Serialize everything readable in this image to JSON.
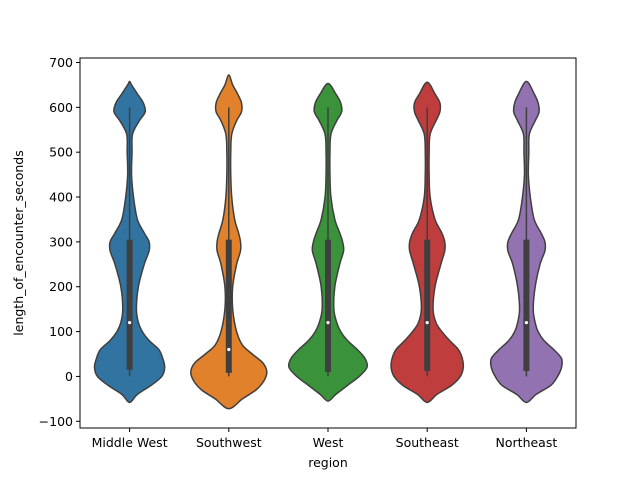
{
  "chart_data": {
    "type": "violin",
    "xlabel": "region",
    "ylabel": "length_of_encounter_seconds",
    "categories": [
      "Middle West",
      "Southwest",
      "West",
      "Southeast",
      "Northeast"
    ],
    "colors": [
      "#3274a1",
      "#e1812c",
      "#3a923a",
      "#c03d3e",
      "#9372b2"
    ],
    "ylim": [
      -115,
      710
    ],
    "yticks": [
      -100,
      0,
      100,
      200,
      300,
      400,
      500,
      600,
      700
    ],
    "grid": false,
    "violins": [
      {
        "name": "Middle West",
        "min": -58,
        "max": 658,
        "box": {
          "whisker_low": 0,
          "q1": 15,
          "median": 120,
          "q3": 305,
          "whisker_high": 600
        },
        "density": [
          [
            -58,
            0
          ],
          [
            -40,
            8
          ],
          [
            -20,
            22
          ],
          [
            0,
            33
          ],
          [
            20,
            36
          ],
          [
            40,
            34
          ],
          [
            60,
            30
          ],
          [
            80,
            20
          ],
          [
            100,
            13
          ],
          [
            120,
            9
          ],
          [
            150,
            7
          ],
          [
            200,
            9
          ],
          [
            250,
            15
          ],
          [
            280,
            20
          ],
          [
            300,
            20
          ],
          [
            320,
            15
          ],
          [
            350,
            8
          ],
          [
            400,
            4
          ],
          [
            450,
            2
          ],
          [
            500,
            2.5
          ],
          [
            540,
            3
          ],
          [
            570,
            10
          ],
          [
            590,
            16
          ],
          [
            610,
            14
          ],
          [
            630,
            8
          ],
          [
            650,
            2
          ],
          [
            658,
            0
          ]
        ]
      },
      {
        "name": "Southwest",
        "min": -72,
        "max": 672,
        "box": {
          "whisker_low": 0,
          "q1": 8,
          "median": 60,
          "q3": 305,
          "whisker_high": 600
        },
        "density": [
          [
            -72,
            0
          ],
          [
            -50,
            14
          ],
          [
            -30,
            28
          ],
          [
            -10,
            36
          ],
          [
            10,
            39
          ],
          [
            30,
            35
          ],
          [
            50,
            24
          ],
          [
            70,
            14
          ],
          [
            100,
            8
          ],
          [
            150,
            4
          ],
          [
            200,
            4
          ],
          [
            250,
            8
          ],
          [
            280,
            12
          ],
          [
            300,
            12
          ],
          [
            320,
            10
          ],
          [
            350,
            6
          ],
          [
            400,
            3
          ],
          [
            450,
            2
          ],
          [
            500,
            2
          ],
          [
            540,
            3
          ],
          [
            570,
            8
          ],
          [
            590,
            13
          ],
          [
            610,
            13
          ],
          [
            630,
            9
          ],
          [
            650,
            4
          ],
          [
            672,
            0
          ]
        ]
      },
      {
        "name": "West",
        "min": -55,
        "max": 653,
        "box": {
          "whisker_low": 0,
          "q1": 10,
          "median": 120,
          "q3": 305,
          "whisker_high": 600
        },
        "density": [
          [
            -55,
            0
          ],
          [
            -40,
            8
          ],
          [
            -20,
            20
          ],
          [
            0,
            32
          ],
          [
            20,
            40
          ],
          [
            40,
            38
          ],
          [
            60,
            30
          ],
          [
            80,
            20
          ],
          [
            100,
            13
          ],
          [
            120,
            9
          ],
          [
            150,
            6
          ],
          [
            200,
            7
          ],
          [
            250,
            12
          ],
          [
            280,
            16
          ],
          [
            300,
            15
          ],
          [
            320,
            12
          ],
          [
            350,
            7
          ],
          [
            400,
            3
          ],
          [
            450,
            2
          ],
          [
            500,
            2
          ],
          [
            540,
            3
          ],
          [
            570,
            9
          ],
          [
            590,
            14
          ],
          [
            610,
            13
          ],
          [
            630,
            8
          ],
          [
            653,
            0
          ]
        ]
      },
      {
        "name": "Southeast",
        "min": -58,
        "max": 656,
        "box": {
          "whisker_low": 0,
          "q1": 12,
          "median": 120,
          "q3": 305,
          "whisker_high": 600
        },
        "density": [
          [
            -58,
            0
          ],
          [
            -40,
            10
          ],
          [
            -20,
            25
          ],
          [
            0,
            34
          ],
          [
            20,
            37
          ],
          [
            40,
            36
          ],
          [
            60,
            32
          ],
          [
            80,
            23
          ],
          [
            100,
            15
          ],
          [
            120,
            9
          ],
          [
            150,
            6
          ],
          [
            200,
            8
          ],
          [
            250,
            14
          ],
          [
            280,
            18
          ],
          [
            300,
            18
          ],
          [
            320,
            15
          ],
          [
            350,
            8
          ],
          [
            400,
            3
          ],
          [
            450,
            2
          ],
          [
            500,
            2
          ],
          [
            540,
            3
          ],
          [
            570,
            9
          ],
          [
            590,
            13
          ],
          [
            610,
            13
          ],
          [
            630,
            8
          ],
          [
            656,
            0
          ]
        ]
      },
      {
        "name": "Northeast",
        "min": -58,
        "max": 658,
        "box": {
          "whisker_low": 0,
          "q1": 12,
          "median": 120,
          "q3": 305,
          "whisker_high": 600
        },
        "density": [
          [
            -58,
            0
          ],
          [
            -40,
            10
          ],
          [
            -20,
            25
          ],
          [
            0,
            32
          ],
          [
            20,
            36
          ],
          [
            40,
            36
          ],
          [
            60,
            28
          ],
          [
            80,
            18
          ],
          [
            100,
            12
          ],
          [
            120,
            9
          ],
          [
            150,
            7
          ],
          [
            200,
            9
          ],
          [
            250,
            14
          ],
          [
            280,
            19
          ],
          [
            300,
            19
          ],
          [
            320,
            15
          ],
          [
            350,
            8
          ],
          [
            400,
            4
          ],
          [
            450,
            2
          ],
          [
            500,
            2.5
          ],
          [
            540,
            3
          ],
          [
            570,
            9
          ],
          [
            590,
            13
          ],
          [
            610,
            12
          ],
          [
            630,
            8
          ],
          [
            658,
            0
          ]
        ]
      }
    ]
  }
}
